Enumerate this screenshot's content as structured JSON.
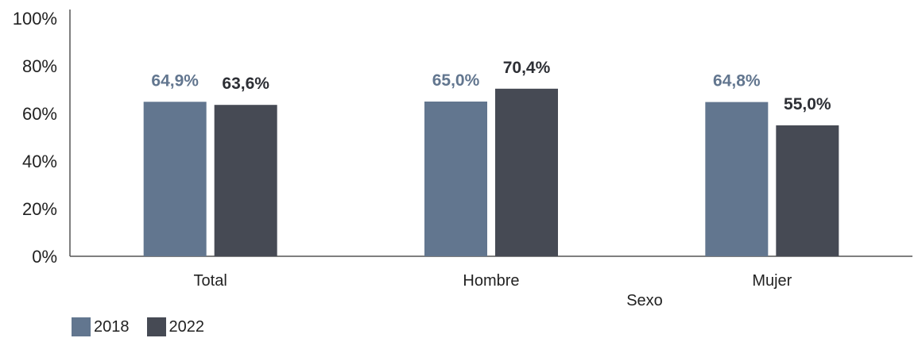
{
  "chart_data": {
    "type": "bar",
    "categories": [
      "Total",
      "Hombre",
      "Mujer"
    ],
    "series": [
      {
        "name": "2018",
        "values": [
          64.9,
          65.0,
          64.8
        ],
        "labels": [
          "64,9%",
          "65,0%",
          "64,8%"
        ],
        "color": "#62768F",
        "label_color": "#62768F"
      },
      {
        "name": "2022",
        "values": [
          63.6,
          70.4,
          55.0
        ],
        "labels": [
          "63,6%",
          "70,4%",
          "55,0%"
        ],
        "color": "#464A54",
        "label_color": "#2D2F35"
      }
    ],
    "title": "",
    "xlabel": "Sexo",
    "ylabel": "",
    "ylim": [
      0,
      100
    ],
    "yticks": [
      0,
      20,
      40,
      60,
      80,
      100
    ],
    "ytick_labels": [
      "0%",
      "20%",
      "40%",
      "60%",
      "80%",
      "100%"
    ],
    "grid": false,
    "legend_position": "bottom-left"
  }
}
